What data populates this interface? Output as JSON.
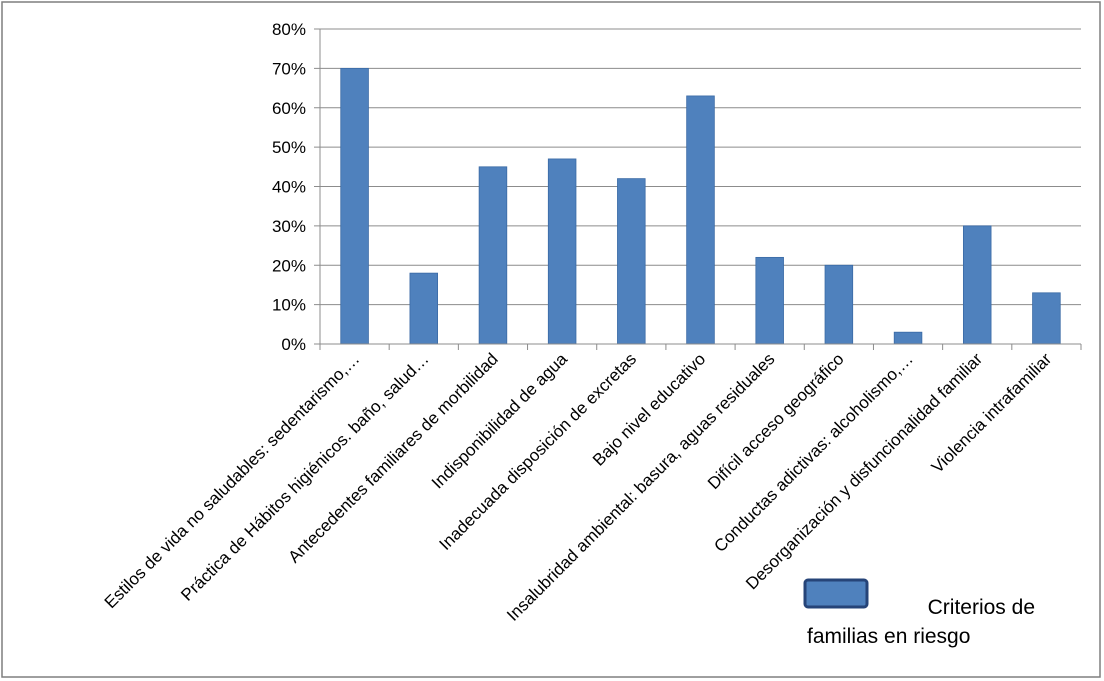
{
  "chart_data": {
    "type": "bar",
    "categories": [
      "Estilos de vida no saludables: sedentarismo,…",
      "Práctica de Hábitos higiénicos. baño, salud…",
      "Antecedentes familiares de morbilidad",
      "Indisponibilidad de agua",
      "Inadecuada disposición de excretas",
      "Bajo nivel educativo",
      "Insalubridad ambiental: basura, aguas residuales",
      "Difícil acceso geográfico",
      "Conductas adictivas: alcoholismo,…",
      "Desorganización y disfuncionalidad familiar",
      "Violencia intrafamiliar"
    ],
    "series": [
      {
        "name": "Criterios de familias en riesgo",
        "values": [
          70,
          18,
          45,
          47,
          42,
          63,
          22,
          20,
          3,
          30,
          13
        ]
      }
    ],
    "ylim": [
      0,
      80
    ],
    "yticks": [
      "0%",
      "10%",
      "20%",
      "30%",
      "40%",
      "50%",
      "60%",
      "70%",
      "80%"
    ],
    "grid": true,
    "legend_position": "bottom-right",
    "legend_line1": "Criterios de",
    "legend_line2": "familias en riesgo",
    "colors": {
      "bar": "#4F81BD",
      "bar_edge": "#3A6AA5",
      "legend_swatch_border": "#264478",
      "grid": "#8C8C8C",
      "frame": "#7F7F7F"
    }
  }
}
